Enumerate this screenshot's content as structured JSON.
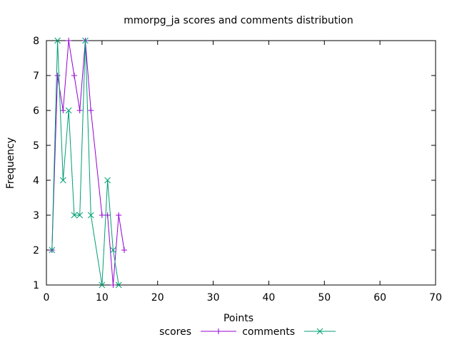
{
  "chart_data": {
    "type": "line",
    "title": "mmorpg_ja scores and comments distribution",
    "xlabel": "Points",
    "ylabel": "Frequency",
    "xlim": [
      0,
      70
    ],
    "ylim": [
      1,
      8
    ],
    "x_ticks": [
      "0",
      "10",
      "20",
      "30",
      "40",
      "50",
      "60",
      "70"
    ],
    "y_ticks": [
      "1",
      "2",
      "3",
      "4",
      "5",
      "6",
      "7",
      "8"
    ],
    "grid": false,
    "legend_position": "bottom",
    "series": [
      {
        "name": "scores",
        "color": "#9400d3",
        "marker": "plus",
        "x": [
          1,
          2,
          3,
          4,
          5,
          6,
          7,
          8,
          10,
          11,
          12,
          13,
          14
        ],
        "y": [
          2,
          7,
          6,
          8,
          7,
          6,
          8,
          6,
          3,
          3,
          1,
          3,
          2
        ]
      },
      {
        "name": "comments",
        "color": "#009e73",
        "marker": "cross",
        "x": [
          1,
          2,
          3,
          4,
          5,
          6,
          7,
          8,
          10,
          11,
          12,
          13
        ],
        "y": [
          2,
          8,
          4,
          6,
          3,
          3,
          8,
          3,
          1,
          4,
          2,
          1
        ]
      }
    ]
  }
}
